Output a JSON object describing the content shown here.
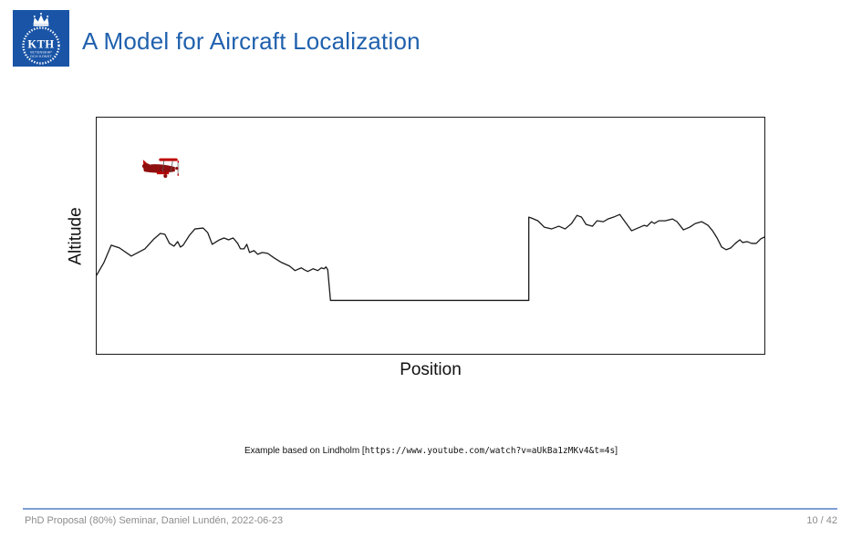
{
  "slide": {
    "title": "A Model for Aircraft Localization",
    "logo": {
      "acronym": "KTH",
      "sub_line1": "VETENSKAP",
      "sub_line2": "OCH KONST"
    },
    "caption": {
      "prefix": "Example based on Lindholm [",
      "url": "https://www.youtube.com/watch?v=aUkBa1zMKv4&t=4s",
      "suffix": "]"
    },
    "footer": {
      "left": "PhD Proposal (80%) Seminar, Daniel Lundén, 2022-06-23",
      "page": "10 / 42"
    }
  },
  "chart_data": {
    "type": "line",
    "title": "",
    "xlabel": "Position",
    "ylabel": "Altitude",
    "axes_ticks": "none",
    "description": "Schematic terrain profile: jagged mountains on the left, a flat lake/valley section in the middle, a sharp step up to a jagged plateau on the right; a red biplane flies above the left mountains.",
    "plot_size": [
      734,
      261
    ],
    "terrain_points": [
      [
        0,
        174
      ],
      [
        8,
        160
      ],
      [
        16,
        141
      ],
      [
        25,
        144
      ],
      [
        38,
        153
      ],
      [
        53,
        145
      ],
      [
        63,
        134
      ],
      [
        70,
        128
      ],
      [
        75,
        129
      ],
      [
        80,
        139
      ],
      [
        85,
        142
      ],
      [
        89,
        137
      ],
      [
        92,
        143
      ],
      [
        95,
        141
      ],
      [
        102,
        130
      ],
      [
        108,
        123
      ],
      [
        117,
        122
      ],
      [
        122,
        127
      ],
      [
        127,
        140
      ],
      [
        135,
        135
      ],
      [
        140,
        133
      ],
      [
        145,
        135
      ],
      [
        150,
        133
      ],
      [
        155,
        139
      ],
      [
        158,
        145
      ],
      [
        162,
        145
      ],
      [
        165,
        140
      ],
      [
        168,
        149
      ],
      [
        173,
        147
      ],
      [
        177,
        151
      ],
      [
        182,
        149
      ],
      [
        188,
        150
      ],
      [
        195,
        155
      ],
      [
        203,
        160
      ],
      [
        212,
        164
      ],
      [
        218,
        169
      ],
      [
        225,
        166
      ],
      [
        228,
        168
      ],
      [
        232,
        170
      ],
      [
        238,
        167
      ],
      [
        243,
        169
      ],
      [
        247,
        166
      ],
      [
        250,
        167
      ],
      [
        252,
        165
      ],
      [
        254,
        168
      ],
      [
        257,
        202
      ],
      [
        475,
        202
      ],
      [
        475,
        110
      ],
      [
        478,
        111
      ],
      [
        485,
        114
      ],
      [
        492,
        121
      ],
      [
        500,
        123
      ],
      [
        508,
        120
      ],
      [
        515,
        123
      ],
      [
        522,
        117
      ],
      [
        528,
        108
      ],
      [
        533,
        110
      ],
      [
        538,
        118
      ],
      [
        545,
        120
      ],
      [
        550,
        114
      ],
      [
        557,
        115
      ],
      [
        562,
        112
      ],
      [
        568,
        110
      ],
      [
        575,
        107
      ],
      [
        580,
        114
      ],
      [
        588,
        125
      ],
      [
        595,
        122
      ],
      [
        602,
        119
      ],
      [
        605,
        120
      ],
      [
        610,
        115
      ],
      [
        613,
        117
      ],
      [
        618,
        114
      ],
      [
        625,
        114
      ],
      [
        633,
        112
      ],
      [
        638,
        115
      ],
      [
        645,
        124
      ],
      [
        652,
        121
      ],
      [
        658,
        117
      ],
      [
        665,
        115
      ],
      [
        672,
        119
      ],
      [
        677,
        125
      ],
      [
        682,
        133
      ],
      [
        687,
        143
      ],
      [
        692,
        146
      ],
      [
        697,
        144
      ],
      [
        702,
        139
      ],
      [
        707,
        135
      ],
      [
        710,
        138
      ],
      [
        715,
        137
      ],
      [
        720,
        139
      ],
      [
        725,
        139
      ],
      [
        730,
        134
      ],
      [
        734,
        132
      ]
    ],
    "plane": {
      "x": 50,
      "y": 42
    }
  },
  "colors": {
    "kth-blue": "#1954a6",
    "title-blue": "#2061ae",
    "footer-line": "#7f9fd6",
    "footer-text": "#8c8c8c",
    "plane-red": "#8f0f0f",
    "plane-bright-red": "#c00000",
    "line-black": "#1a1a1a"
  }
}
